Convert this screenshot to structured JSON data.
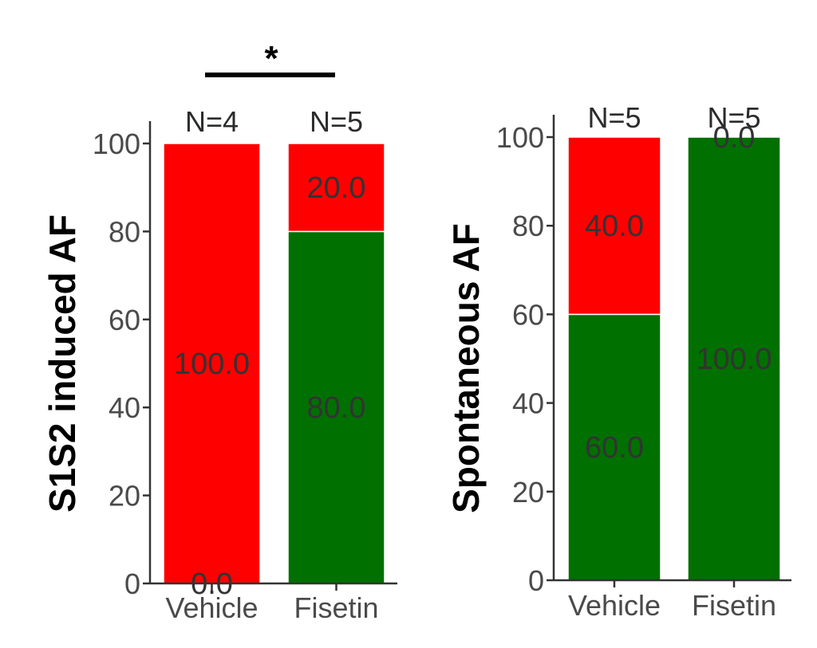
{
  "chart_data": [
    {
      "type": "bar",
      "stacked": true,
      "categories": [
        "Vehicle",
        "Fisetin"
      ],
      "ylabel": "S1S2 induced AF",
      "ylim": [
        0,
        100
      ],
      "yticks": [
        "0",
        "20",
        "40",
        "60",
        "80",
        "100"
      ],
      "n_labels": [
        "N=4",
        "N=5"
      ],
      "significance": "*",
      "series": [
        {
          "values": [
            0.0,
            80.0
          ],
          "labels": [
            "0.0",
            "80.0"
          ],
          "color": "#007000"
        },
        {
          "values": [
            100.0,
            20.0
          ],
          "labels": [
            "100.0",
            "20.0"
          ],
          "color": "#ff0000"
        }
      ]
    },
    {
      "type": "bar",
      "stacked": true,
      "categories": [
        "Vehicle",
        "Fisetin"
      ],
      "ylabel": "Spontaneous AF",
      "ylim": [
        0,
        100
      ],
      "yticks": [
        "0",
        "20",
        "40",
        "60",
        "80",
        "100"
      ],
      "n_labels": [
        "N=5",
        "N=5"
      ],
      "series": [
        {
          "values": [
            60.0,
            100.0
          ],
          "labels": [
            "60.0",
            "100.0"
          ],
          "color": "#007000"
        },
        {
          "values": [
            40.0,
            0.0
          ],
          "labels": [
            "40.0",
            "0.0"
          ],
          "color": "#ff0000"
        }
      ]
    }
  ]
}
